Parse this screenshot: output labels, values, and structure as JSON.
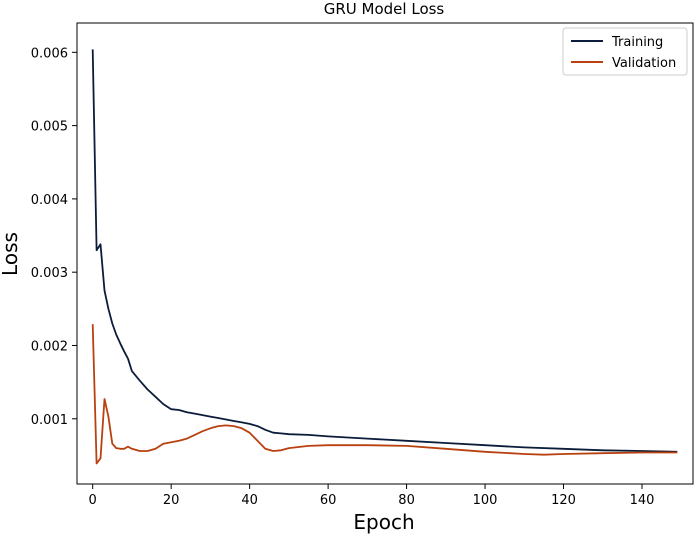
{
  "chart_data": {
    "type": "line",
    "title": "GRU Model Loss",
    "xlabel": "Epoch",
    "ylabel": "Loss",
    "xlim": [
      -4,
      153
    ],
    "ylim": [
      0.00011,
      0.0064
    ],
    "xticks": [
      0,
      20,
      40,
      60,
      80,
      100,
      120,
      140
    ],
    "yticks": [
      0.001,
      0.002,
      0.003,
      0.004,
      0.005,
      0.006
    ],
    "ytick_labels": [
      "0.001",
      "0.002",
      "0.003",
      "0.004",
      "0.005",
      "0.006"
    ],
    "grid": false,
    "legend_position": "top-right",
    "series": [
      {
        "name": "Training",
        "color": "#0b1d3a",
        "x": [
          0,
          1,
          2,
          3,
          4,
          5,
          6,
          7,
          8,
          9,
          10,
          12,
          14,
          16,
          18,
          20,
          22,
          24,
          26,
          28,
          30,
          32,
          34,
          36,
          38,
          40,
          42,
          44,
          46,
          48,
          50,
          55,
          60,
          70,
          80,
          90,
          100,
          110,
          120,
          130,
          140,
          149
        ],
        "y": [
          0.00604,
          0.0033,
          0.00338,
          0.00275,
          0.0025,
          0.0023,
          0.00215,
          0.00203,
          0.00192,
          0.00182,
          0.00165,
          0.00152,
          0.0014,
          0.0013,
          0.0012,
          0.00113,
          0.00112,
          0.00109,
          0.00107,
          0.00105,
          0.00103,
          0.00101,
          0.00099,
          0.00097,
          0.00095,
          0.00093,
          0.0009,
          0.00085,
          0.00081,
          0.0008,
          0.00079,
          0.00078,
          0.00076,
          0.00073,
          0.0007,
          0.00067,
          0.00064,
          0.00061,
          0.00059,
          0.00057,
          0.00056,
          0.00055
        ]
      },
      {
        "name": "Validation",
        "color": "#b8410f",
        "x": [
          0,
          1,
          2,
          3,
          4,
          5,
          6,
          7,
          8,
          9,
          10,
          12,
          14,
          16,
          18,
          20,
          22,
          24,
          26,
          28,
          30,
          32,
          34,
          36,
          38,
          40,
          42,
          44,
          46,
          48,
          50,
          55,
          60,
          70,
          80,
          90,
          100,
          110,
          115,
          120,
          130,
          140,
          149
        ],
        "y": [
          0.00229,
          0.00039,
          0.00046,
          0.00127,
          0.00103,
          0.00066,
          0.0006,
          0.00059,
          0.00059,
          0.00062,
          0.00059,
          0.00056,
          0.00056,
          0.00059,
          0.00066,
          0.00068,
          0.0007,
          0.00073,
          0.00078,
          0.00083,
          0.00087,
          0.0009,
          0.00091,
          0.0009,
          0.00087,
          0.00081,
          0.0007,
          0.00059,
          0.00056,
          0.00057,
          0.0006,
          0.00063,
          0.00064,
          0.00064,
          0.00063,
          0.00059,
          0.00055,
          0.00052,
          0.00051,
          0.00052,
          0.00053,
          0.00054,
          0.00054
        ]
      }
    ]
  }
}
